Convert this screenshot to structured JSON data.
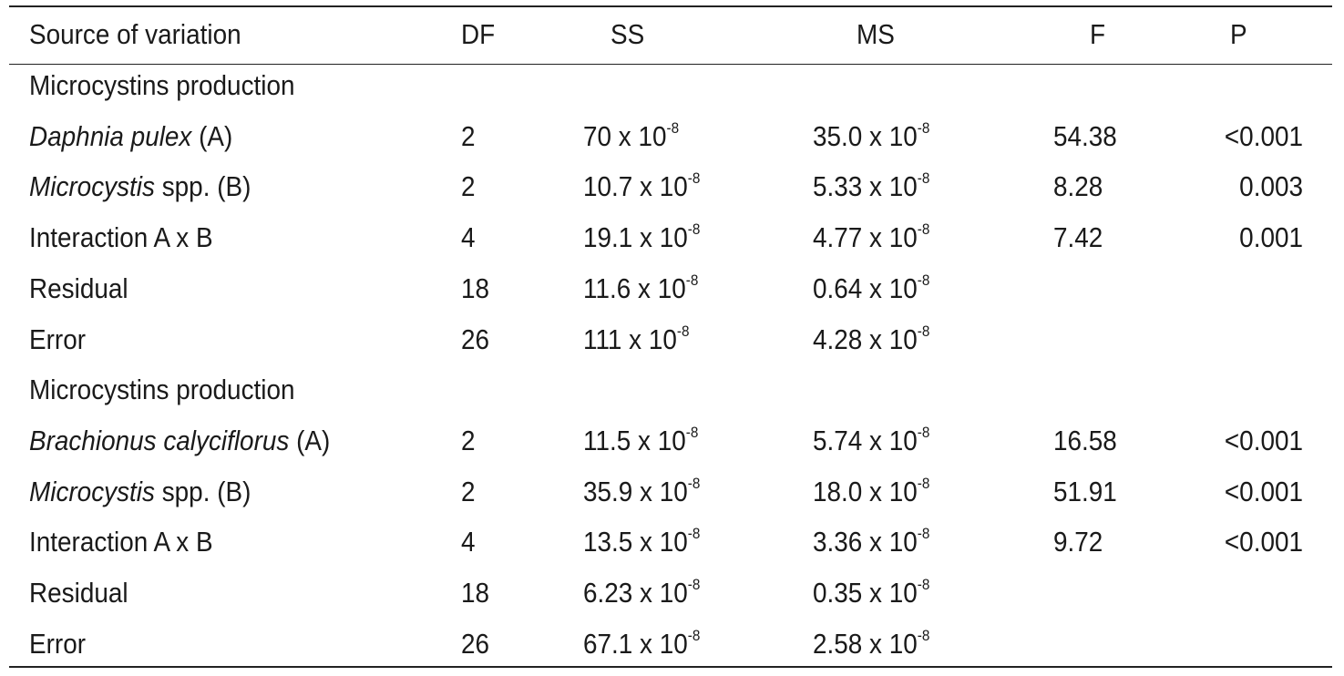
{
  "header": {
    "source": "Source of variation",
    "df": "DF",
    "ss": "SS",
    "ms": "MS",
    "f": "F",
    "p": "P"
  },
  "exponent": "-8",
  "times": " x 10",
  "sections": [
    {
      "title": "Microcystins production",
      "rows": [
        {
          "italic": "Daphnia pulex",
          "rest": " (A)",
          "df": "2",
          "ss": "70",
          "ms": "35.0",
          "f": "54.38",
          "p": "<0.001"
        },
        {
          "italic": "Microcystis",
          "rest": " spp. (B)",
          "df": "2",
          "ss": "10.7",
          "ms": "5.33",
          "f": "8.28",
          "p": "0.003"
        },
        {
          "italic": "",
          "rest": "Interaction A x B",
          "df": "4",
          "ss": "19.1",
          "ms": "4.77",
          "f": "7.42",
          "p": "0.001"
        },
        {
          "italic": "",
          "rest": "Residual",
          "df": "18",
          "ss": "11.6",
          "ms": "0.64",
          "f": "",
          "p": ""
        },
        {
          "italic": "",
          "rest": "Error",
          "df": "26",
          "ss": "111",
          "ms": "4.28",
          "f": "",
          "p": ""
        }
      ]
    },
    {
      "title": "Microcystins production",
      "rows": [
        {
          "italic": "Brachionus calyciflorus",
          "rest": " (A)",
          "df": "2",
          "ss": "11.5",
          "ms": "5.74",
          "f": "16.58",
          "p": "<0.001"
        },
        {
          "italic": "Microcystis",
          "rest": " spp. (B)",
          "df": "2",
          "ss": "35.9",
          "ms": "18.0",
          "f": "51.91",
          "p": "<0.001"
        },
        {
          "italic": "",
          "rest": "Interaction A x B",
          "df": "4",
          "ss": "13.5",
          "ms": "3.36",
          "f": "9.72",
          "p": "<0.001"
        },
        {
          "italic": "",
          "rest": "Residual",
          "df": "18",
          "ss": "6.23",
          "ms": "0.35",
          "f": "",
          "p": ""
        },
        {
          "italic": "",
          "rest": "Error",
          "df": "26",
          "ss": "67.1",
          "ms": "2.58",
          "f": "",
          "p": ""
        }
      ]
    }
  ]
}
